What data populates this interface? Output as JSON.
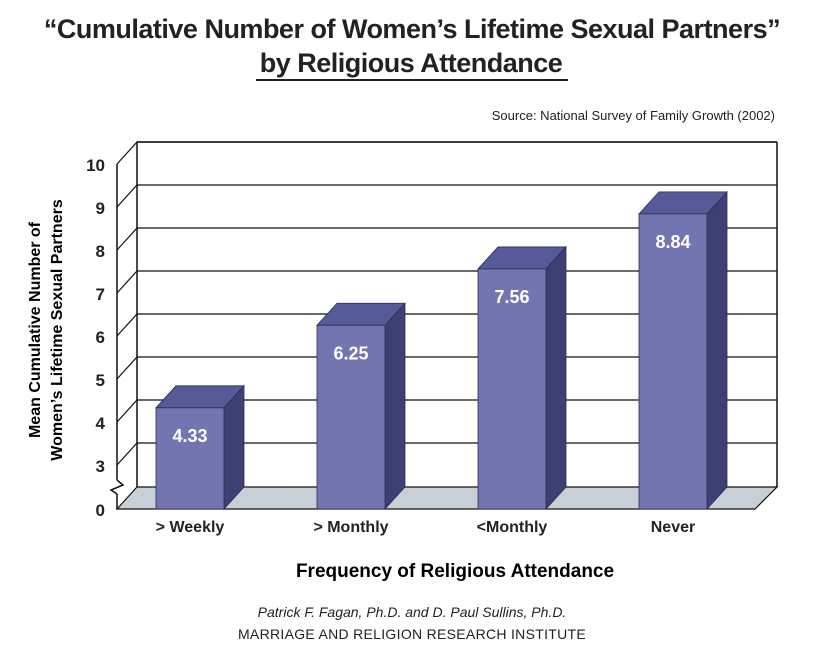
{
  "chart_data": {
    "type": "bar",
    "title_line1": "“Cumulative Number of Women’s Lifetime Sexual Partners”",
    "title_line2": "by Religious Attendance",
    "source": "Source: National Survey of Family Growth (2002)",
    "categories": [
      "> Weekly",
      "> Monthly",
      "<Monthly",
      "Never"
    ],
    "values": [
      4.33,
      6.25,
      7.56,
      8.84
    ],
    "value_labels": [
      "4.33",
      "6.25",
      "7.56",
      "8.84"
    ],
    "ylabel_line1": "Mean Cumulative Number of",
    "ylabel_line2": "Women’s Lifetime Sexual Partners",
    "xlabel": "Frequency of Religious Attendance",
    "yticks": [
      0,
      3,
      4,
      5,
      6,
      7,
      8,
      9,
      10
    ],
    "ytick_labels": [
      "0",
      "3",
      "4",
      "5",
      "6",
      "7",
      "8",
      "9",
      "10"
    ],
    "ylim": [
      0,
      10
    ],
    "axis_break": true,
    "grid": true,
    "legend": "none",
    "colors": {
      "bar_front": "#7275af",
      "bar_side": "#3d4072",
      "bar_top": "#575a99",
      "floor": "#c9cfd6"
    }
  },
  "credits": {
    "authors": "Patrick F. Fagan, Ph.D. and D. Paul Sullins, Ph.D.",
    "institute": "MARRIAGE AND RELIGION RESEARCH INSTITUTE"
  }
}
